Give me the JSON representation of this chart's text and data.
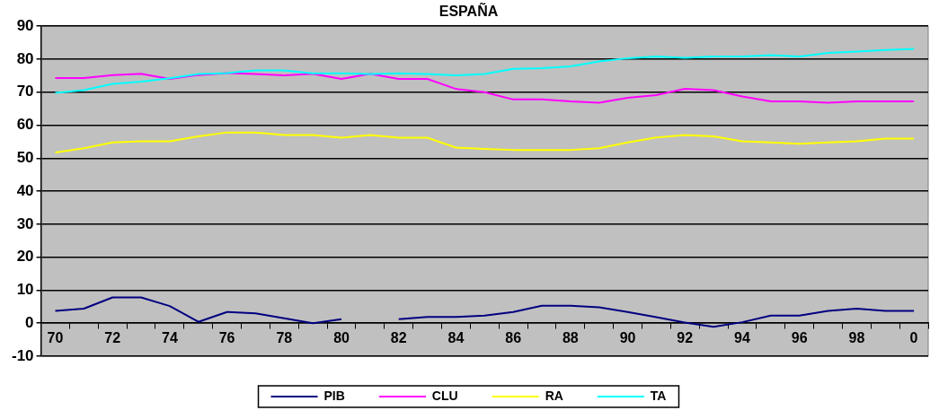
{
  "chart_data": {
    "type": "line",
    "title": "ESPAÑA",
    "categories": [
      "70",
      null,
      "72",
      null,
      "74",
      null,
      "76",
      null,
      "78",
      null,
      "80",
      null,
      "82",
      null,
      "84",
      null,
      "86",
      null,
      "88",
      null,
      "90",
      null,
      "92",
      null,
      "94",
      null,
      "96",
      null,
      "98",
      null,
      "0"
    ],
    "series": [
      {
        "name": "PIB",
        "color": "#000080",
        "values": [
          3.7,
          4.4,
          7.8,
          7.8,
          5.2,
          0.4,
          3.4,
          3.0,
          1.5,
          0,
          1.2,
          null,
          1.2,
          1.9,
          1.9,
          2.3,
          3.4,
          5.3,
          5.3,
          4.8,
          3.4,
          1.8,
          0.2,
          -1.1,
          0.3,
          2.3,
          2.3,
          3.7,
          4.4,
          3.7,
          3.7
        ]
      },
      {
        "name": "CLU",
        "color": "#ff00ff",
        "values": [
          74.3,
          74.3,
          75.2,
          75.6,
          74,
          75.2,
          75.8,
          75.5,
          75.1,
          75.6,
          74,
          75.6,
          74,
          74,
          71,
          70,
          67.8,
          67.8,
          67.2,
          66.8,
          68.3,
          69.1,
          71,
          70.6,
          68.7,
          67.2,
          67.2,
          66.8,
          67.2,
          67.2,
          67.2
        ]
      },
      {
        "name": "RA",
        "color": "#ffff00",
        "values": [
          51.7,
          53,
          54.8,
          55.1,
          55.1,
          56.6,
          57.8,
          57.8,
          57,
          57,
          56.2,
          57,
          56.2,
          56.2,
          53.2,
          52.8,
          52.5,
          52.5,
          52.5,
          53,
          54.8,
          56.3,
          57,
          56.6,
          55.1,
          54.8,
          54.4,
          54.8,
          55.1,
          55.9,
          55.9
        ]
      },
      {
        "name": "TA",
        "color": "#00ffff",
        "values": [
          69.8,
          70.6,
          72.5,
          73.2,
          74.2,
          75.5,
          75.8,
          76.6,
          76.6,
          75.7,
          75.7,
          75.5,
          75.7,
          75.5,
          75.1,
          75.5,
          77.1,
          77.3,
          77.8,
          79.3,
          80.3,
          80.8,
          80.4,
          80.8,
          80.8,
          81.2,
          80.8,
          81.9,
          82.3,
          82.8,
          83.1
        ]
      }
    ],
    "ylim": [
      -10,
      90
    ],
    "yticks": [
      -10,
      0,
      10,
      20,
      30,
      40,
      50,
      60,
      70,
      80,
      90
    ],
    "grid": "y",
    "legend": "bottom"
  }
}
